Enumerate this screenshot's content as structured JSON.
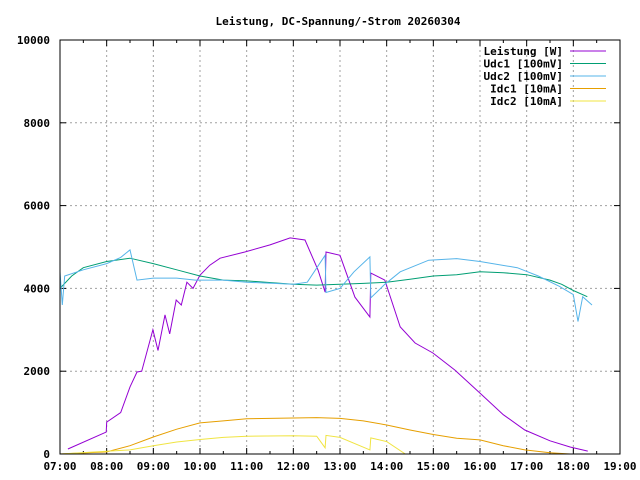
{
  "chart_data": {
    "type": "line",
    "title": "Leistung, DC-Spannung/-Strom 20260304",
    "xlabel": "",
    "ylabel": "",
    "xlim": [
      7,
      19
    ],
    "ylim": [
      0,
      10000
    ],
    "grid": true,
    "legend_position": "top-right",
    "x_ticks": [
      "07:00",
      "08:00",
      "09:00",
      "10:00",
      "11:00",
      "12:00",
      "13:00",
      "14:00",
      "15:00",
      "16:00",
      "17:00",
      "18:00",
      "19:00"
    ],
    "y_ticks": [
      "0",
      "2000",
      "4000",
      "6000",
      "8000",
      "10000"
    ],
    "series": [
      {
        "name": "Leistung [W]",
        "color": "#9400d3",
        "points": [
          [
            7.17,
            120
          ],
          [
            7.99,
            530
          ],
          [
            8.0,
            770
          ],
          [
            8.3,
            1000
          ],
          [
            8.5,
            1620
          ],
          [
            8.65,
            1980
          ],
          [
            8.75,
            2000
          ],
          [
            8.99,
            3000
          ],
          [
            9.1,
            2500
          ],
          [
            9.25,
            3360
          ],
          [
            9.35,
            2900
          ],
          [
            9.49,
            3720
          ],
          [
            9.6,
            3600
          ],
          [
            9.72,
            4150
          ],
          [
            9.85,
            4000
          ],
          [
            10.0,
            4320
          ],
          [
            10.21,
            4560
          ],
          [
            10.43,
            4730
          ],
          [
            10.96,
            4880
          ],
          [
            11.5,
            5050
          ],
          [
            11.93,
            5220
          ],
          [
            12.25,
            5170
          ],
          [
            12.53,
            4440
          ],
          [
            12.68,
            3910
          ],
          [
            12.7,
            4880
          ],
          [
            13.0,
            4800
          ],
          [
            13.32,
            3790
          ],
          [
            13.64,
            3310
          ],
          [
            13.66,
            4370
          ],
          [
            13.96,
            4200
          ],
          [
            14.29,
            3070
          ],
          [
            14.61,
            2680
          ],
          [
            14.99,
            2440
          ],
          [
            15.46,
            2030
          ],
          [
            16.0,
            1470
          ],
          [
            16.5,
            950
          ],
          [
            16.96,
            580
          ],
          [
            17.5,
            320
          ],
          [
            17.93,
            170
          ],
          [
            18.31,
            70
          ]
        ]
      },
      {
        "name": "Udc1 [100mV]",
        "color": "#009e73",
        "points": [
          [
            7.0,
            4000
          ],
          [
            7.25,
            4300
          ],
          [
            7.5,
            4500
          ],
          [
            8.0,
            4650
          ],
          [
            8.5,
            4730
          ],
          [
            9.0,
            4600
          ],
          [
            9.5,
            4450
          ],
          [
            10.0,
            4300
          ],
          [
            10.5,
            4200
          ],
          [
            11.0,
            4180
          ],
          [
            12.0,
            4100
          ],
          [
            12.5,
            4080
          ],
          [
            13.0,
            4100
          ],
          [
            13.5,
            4120
          ],
          [
            14.0,
            4150
          ],
          [
            14.5,
            4220
          ],
          [
            15.0,
            4300
          ],
          [
            15.5,
            4330
          ],
          [
            16.0,
            4400
          ],
          [
            16.5,
            4380
          ],
          [
            17.0,
            4330
          ],
          [
            17.5,
            4200
          ],
          [
            17.75,
            4100
          ],
          [
            18.0,
            3950
          ],
          [
            18.3,
            3800
          ]
        ]
      },
      {
        "name": "Udc2 [100mV]",
        "color": "#56b4e9",
        "points": [
          [
            7.0,
            4400
          ],
          [
            7.05,
            3600
          ],
          [
            7.1,
            4300
          ],
          [
            7.5,
            4450
          ],
          [
            8.0,
            4600
          ],
          [
            8.3,
            4750
          ],
          [
            8.5,
            4930
          ],
          [
            8.65,
            4200
          ],
          [
            9.0,
            4250
          ],
          [
            9.5,
            4250
          ],
          [
            9.9,
            4200
          ],
          [
            10.5,
            4200
          ],
          [
            11.0,
            4150
          ],
          [
            12.0,
            4100
          ],
          [
            12.3,
            4150
          ],
          [
            12.68,
            4800
          ],
          [
            12.7,
            3900
          ],
          [
            13.0,
            4000
          ],
          [
            13.3,
            4400
          ],
          [
            13.64,
            4760
          ],
          [
            13.66,
            3770
          ],
          [
            13.96,
            4100
          ],
          [
            14.29,
            4400
          ],
          [
            14.9,
            4680
          ],
          [
            15.5,
            4720
          ],
          [
            16.0,
            4650
          ],
          [
            16.8,
            4500
          ],
          [
            17.25,
            4300
          ],
          [
            17.7,
            4050
          ],
          [
            18.0,
            3850
          ],
          [
            18.1,
            3200
          ],
          [
            18.2,
            3800
          ],
          [
            18.4,
            3600
          ]
        ]
      },
      {
        "name": "Idc1 [10mA]",
        "color": "#e69f00",
        "points": [
          [
            7.0,
            0
          ],
          [
            8.0,
            50
          ],
          [
            8.5,
            200
          ],
          [
            9.0,
            410
          ],
          [
            9.5,
            600
          ],
          [
            10.0,
            750
          ],
          [
            10.5,
            800
          ],
          [
            11.0,
            850
          ],
          [
            12.0,
            870
          ],
          [
            12.5,
            880
          ],
          [
            13.0,
            860
          ],
          [
            13.5,
            800
          ],
          [
            14.0,
            700
          ],
          [
            14.5,
            580
          ],
          [
            15.0,
            470
          ],
          [
            15.5,
            380
          ],
          [
            16.0,
            340
          ],
          [
            16.5,
            200
          ],
          [
            16.96,
            100
          ],
          [
            17.5,
            30
          ],
          [
            17.93,
            0
          ],
          [
            18.3,
            0
          ]
        ]
      },
      {
        "name": "Idc2 [10mA]",
        "color": "#f0e442",
        "points": [
          [
            7.0,
            0
          ],
          [
            8.5,
            100
          ],
          [
            9.0,
            200
          ],
          [
            9.5,
            290
          ],
          [
            10.0,
            350
          ],
          [
            10.5,
            400
          ],
          [
            11.0,
            430
          ],
          [
            12.0,
            440
          ],
          [
            12.5,
            430
          ],
          [
            12.68,
            150
          ],
          [
            12.7,
            450
          ],
          [
            13.0,
            400
          ],
          [
            13.64,
            100
          ],
          [
            13.66,
            390
          ],
          [
            14.0,
            300
          ],
          [
            14.4,
            0
          ],
          [
            18.3,
            0
          ]
        ]
      }
    ]
  }
}
